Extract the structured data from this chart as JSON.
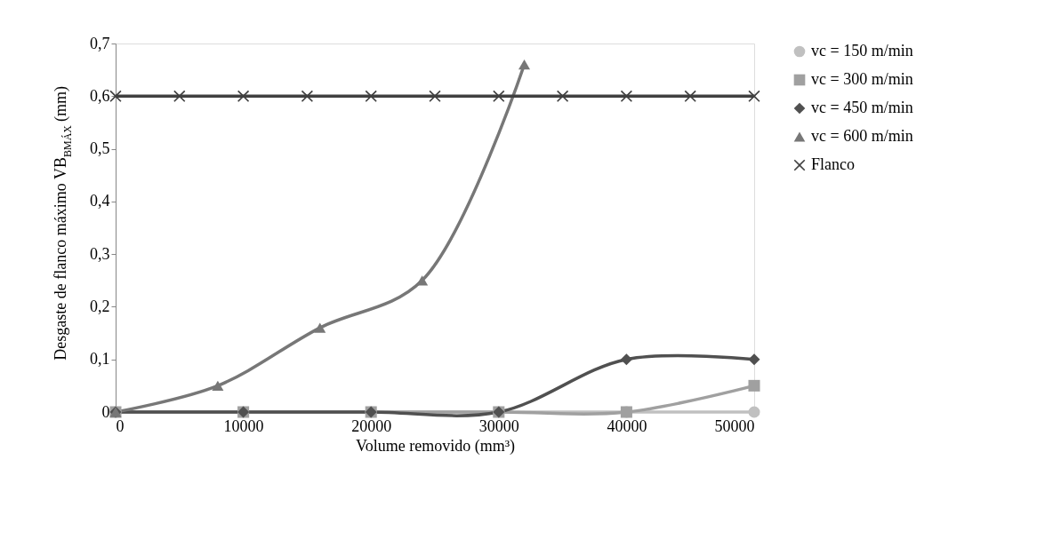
{
  "chart_data": {
    "type": "line",
    "xlabel": "Volume removido (mm³)",
    "ylabel": "Desgaste de  flanco máximo VB$_{BMÁX}$ (mm)",
    "xlim": [
      0,
      50000
    ],
    "xticks": [
      0,
      10000,
      20000,
      30000,
      40000,
      50000
    ],
    "ylim": [
      0,
      0.7
    ],
    "yticks": [
      0,
      {
        "value": 0.1,
        "label": "0,1"
      },
      {
        "value": 0.2,
        "label": "0,2"
      },
      {
        "value": 0.3,
        "label": "0,3"
      },
      {
        "value": 0.4,
        "label": "0,4"
      },
      {
        "value": 0.5,
        "label": "0,5"
      },
      {
        "value": 0.6,
        "label": "0,6"
      },
      {
        "value": 0.7,
        "label": "0,7"
      }
    ],
    "grid": false,
    "legend": "right",
    "series": [
      {
        "name": "vc = 150 m/min",
        "color": "#c0c0c0",
        "marker": "circle",
        "x": [
          0,
          10000,
          20000,
          30000,
          40000,
          50000
        ],
        "values": [
          0,
          0,
          0,
          0,
          0,
          0
        ]
      },
      {
        "name": "vc = 300 m/min",
        "color": "#a0a0a0",
        "marker": "square",
        "x": [
          0,
          10000,
          20000,
          30000,
          40000,
          50000
        ],
        "values": [
          0,
          0,
          0,
          0,
          0,
          0.05
        ]
      },
      {
        "name": "vc = 450 m/min",
        "color": "#505050",
        "marker": "diamond",
        "x": [
          0,
          10000,
          20000,
          30000,
          40000,
          50000
        ],
        "values": [
          0,
          0,
          0,
          0,
          0.1,
          0.1
        ]
      },
      {
        "name": "vc = 600 m/min",
        "color": "#777777",
        "marker": "triangle",
        "x": [
          0,
          8000,
          16000,
          24000,
          32000
        ],
        "values": [
          0,
          0.05,
          0.16,
          0.25,
          0.66
        ]
      },
      {
        "name": "Flanco",
        "color": "#404040",
        "marker": "cross",
        "x": [
          0,
          5000,
          10000,
          15000,
          20000,
          25000,
          30000,
          35000,
          40000,
          45000,
          50000
        ],
        "values": [
          0.6,
          0.6,
          0.6,
          0.6,
          0.6,
          0.6,
          0.6,
          0.6,
          0.6,
          0.6,
          0.6
        ]
      }
    ]
  }
}
